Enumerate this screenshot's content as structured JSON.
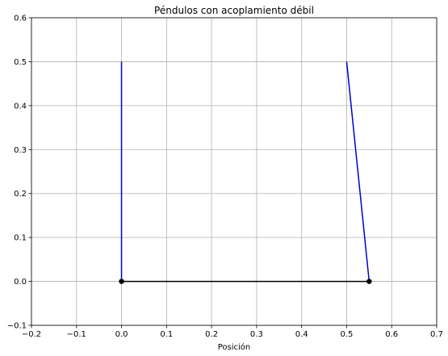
{
  "chart_data": {
    "type": "line",
    "title": "Péndulos con acoplamiento débil",
    "xlabel": "Posición",
    "ylabel": "",
    "xlim": [
      -0.2,
      0.7
    ],
    "ylim": [
      -0.1,
      0.6
    ],
    "xticks": [
      -0.2,
      -0.1,
      0.0,
      0.1,
      0.2,
      0.3,
      0.4,
      0.5,
      0.6,
      0.7
    ],
    "xtick_labels": [
      "−0.2",
      "−0.1",
      "0.0",
      "0.1",
      "0.2",
      "0.3",
      "0.4",
      "0.5",
      "0.6",
      "0.7"
    ],
    "yticks": [
      -0.1,
      0.0,
      0.1,
      0.2,
      0.3,
      0.4,
      0.5,
      0.6
    ],
    "ytick_labels": [
      "−0.1",
      "0.0",
      "0.1",
      "0.2",
      "0.3",
      "0.4",
      "0.5",
      "0.6"
    ],
    "grid": true,
    "series": [
      {
        "role": "pendulum-rod-1",
        "color": "#0000cc",
        "marker": "none",
        "x": [
          0.0,
          0.0
        ],
        "y": [
          0.5,
          0.0
        ]
      },
      {
        "role": "pendulum-rod-2",
        "color": "#0000cc",
        "marker": "none",
        "x": [
          0.5,
          0.55
        ],
        "y": [
          0.5,
          0.0
        ]
      },
      {
        "role": "coupling-spring",
        "color": "#000000",
        "marker": "circle",
        "x": [
          0.0,
          0.55
        ],
        "y": [
          0.0,
          0.0
        ]
      }
    ]
  }
}
